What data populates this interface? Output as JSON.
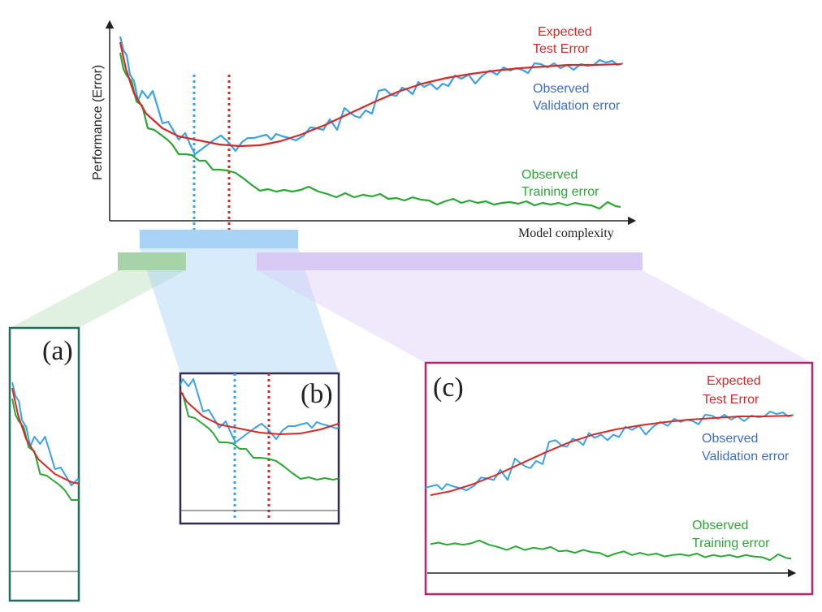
{
  "main_chart": {
    "y_axis_label": "Performance (Error)",
    "x_axis_label": "Model complexity",
    "test_error_label_line1": "Expected",
    "test_error_label_line2": "Test Error",
    "validation_label_line1": "Observed",
    "validation_label_line2": "Validation error",
    "training_label_line1": "Observed",
    "training_label_line2": "Training error"
  },
  "panel_a": {
    "tag": "(a)"
  },
  "panel_b": {
    "tag": "(b)"
  },
  "panel_c": {
    "tag": "(c)",
    "test_error_label_line1": "Expected",
    "test_error_label_line2": "Test Error",
    "validation_label_line1": "Observed",
    "validation_label_line2": "Validation error",
    "training_label_line1": "Observed",
    "training_label_line2": "Training error"
  },
  "colors": {
    "test_error": "#d42a2a",
    "validation": "#3aa2e6",
    "training": "#2aa835",
    "panel_a_border": "#1f6e5e",
    "panel_b_border": "#332a52",
    "panel_c_border": "#b8256a",
    "zoom_a": "#a7d3a8",
    "zoom_b": "#a9d2f7",
    "zoom_c": "#d9c9f5"
  },
  "chart_data": {
    "type": "line",
    "title": "",
    "xlabel": "Model complexity",
    "ylabel": "Performance (Error)",
    "series": [
      {
        "name": "Expected Test Error",
        "shape": "U-shaped curve: high at low complexity, minimum near the red dotted marker, rising and flattening at high complexity"
      },
      {
        "name": "Observed Validation error",
        "shape": "noisy version of the expected test error, minimum near the blue dotted marker"
      },
      {
        "name": "Observed Training error",
        "shape": "monotonically decreasing with noise"
      }
    ],
    "markers": [
      "blue dotted vertical line at validation minimum",
      "red dotted vertical line at test-error minimum"
    ],
    "zoom_panels": [
      "(a) low complexity",
      "(b) around the minimum",
      "(c) high complexity"
    ]
  }
}
